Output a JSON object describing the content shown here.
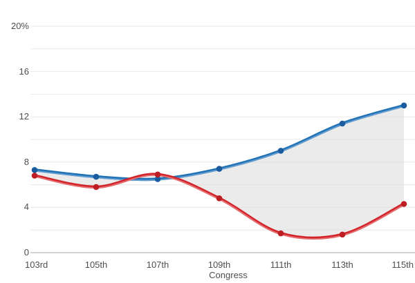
{
  "chart_data": {
    "type": "line",
    "title": "",
    "xlabel": "Congress",
    "ylabel": "",
    "categories": [
      "103rd",
      "105th",
      "107th",
      "109th",
      "111th",
      "113th",
      "115th"
    ],
    "series": [
      {
        "name": "blue-series",
        "color": "#2173b6",
        "highlight_color": "#6ea3d4",
        "point_color": "#1a5c9e",
        "values": [
          7.3,
          6.7,
          6.5,
          7.4,
          9.0,
          11.4,
          13.0
        ]
      },
      {
        "name": "red-series",
        "color": "#d2252b",
        "highlight_color": "#e97a7b",
        "point_color": "#bc1e24",
        "values": [
          6.8,
          5.8,
          6.9,
          4.8,
          1.7,
          1.6,
          4.3
        ]
      }
    ],
    "fill_between_series": true,
    "area_color": "#dadada",
    "area_opacity": 0.55,
    "ylim": [
      0,
      20
    ],
    "grid_step": 2,
    "grid_on": true,
    "grid_color": "#e8e8e8",
    "axis_line_color": "#a3a3a3",
    "legend": "none",
    "y_ticks": [
      {
        "value": 0,
        "label": "0"
      },
      {
        "value": 4,
        "label": "4"
      },
      {
        "value": 8,
        "label": "8"
      },
      {
        "value": 12,
        "label": "12"
      },
      {
        "value": 16,
        "label": "16"
      },
      {
        "value": 20,
        "label": "20%"
      }
    ]
  }
}
